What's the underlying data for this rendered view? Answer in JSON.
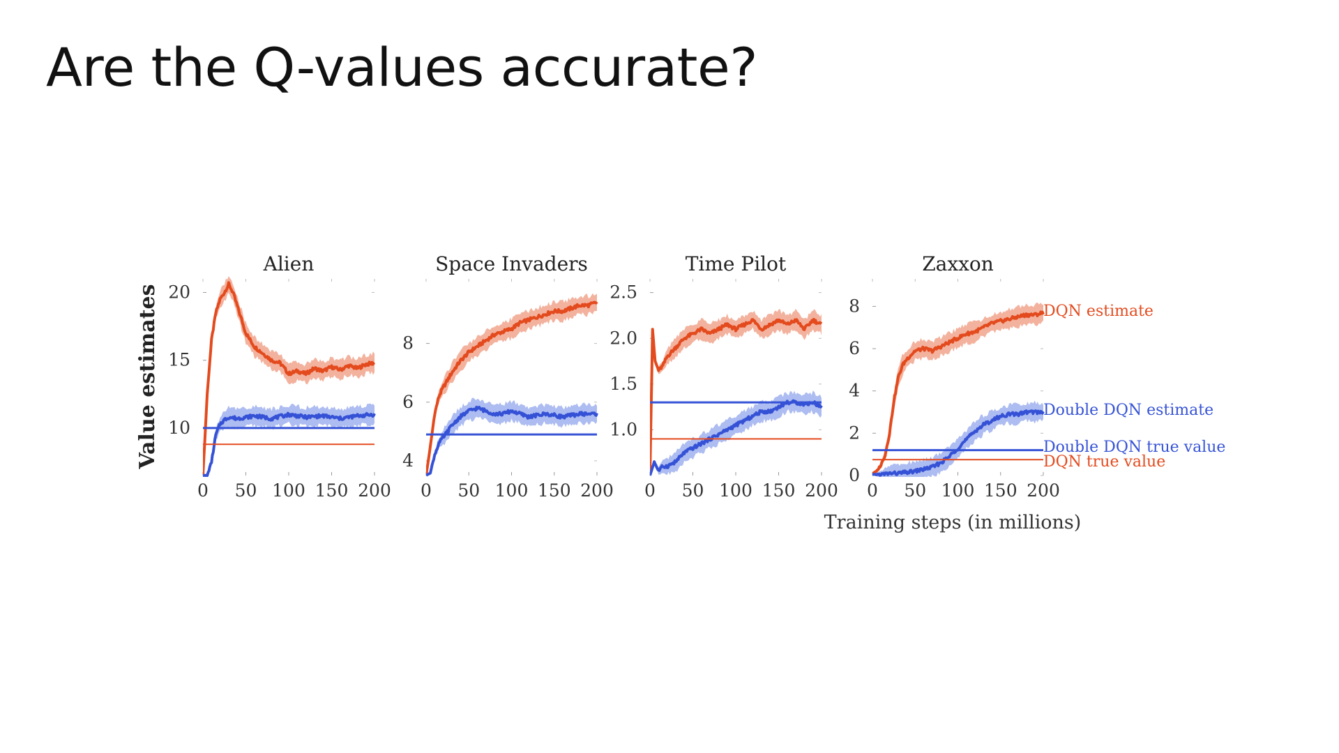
{
  "slide": {
    "title": "Are the Q-values accurate?"
  },
  "colors": {
    "dqn": "#e34a1d",
    "dqn_band": "#f1a48d",
    "double": "#3552d6",
    "double_band": "#9fb0ef",
    "text": "#222222"
  },
  "figure": {
    "ylabel": "Value estimates",
    "xlabel": "Training steps (in millions)",
    "labels": {
      "dqn_estimate": "DQN estimate",
      "double_estimate": "Double DQN estimate",
      "double_true": "Double DQN true value",
      "dqn_true": "DQN true value"
    }
  },
  "chart_data": [
    {
      "type": "line",
      "title": "Alien",
      "xlim": [
        0,
        200
      ],
      "ylim": [
        6.5,
        21
      ],
      "xticks": [
        0,
        50,
        100,
        150,
        200
      ],
      "yticks": [
        10,
        15,
        20
      ],
      "ytick_labels": [
        "10",
        "15",
        "20"
      ],
      "series": [
        {
          "name": "DQN estimate",
          "x": [
            0,
            5,
            10,
            15,
            20,
            25,
            30,
            35,
            40,
            50,
            60,
            70,
            80,
            90,
            100,
            110,
            120,
            130,
            140,
            150,
            160,
            170,
            180,
            190,
            200
          ],
          "values": [
            6.5,
            12.5,
            16.5,
            18.5,
            19.5,
            20.0,
            20.6,
            20.0,
            19.0,
            17.0,
            16.0,
            15.5,
            15.0,
            14.8,
            14.0,
            14.2,
            14.0,
            14.4,
            14.2,
            14.5,
            14.3,
            14.6,
            14.4,
            14.7,
            14.8
          ]
        },
        {
          "name": "Double DQN estimate",
          "x": [
            0,
            5,
            10,
            15,
            20,
            25,
            30,
            40,
            50,
            60,
            80,
            100,
            120,
            140,
            160,
            180,
            200
          ],
          "values": [
            6.5,
            6.5,
            7.5,
            9.5,
            10.3,
            10.6,
            10.8,
            10.7,
            10.8,
            10.9,
            10.7,
            11.0,
            10.8,
            10.9,
            10.7,
            10.9,
            11.0
          ]
        },
        {
          "name": "Double DQN true value",
          "x": [
            0,
            200
          ],
          "values": [
            10.0,
            10.0
          ]
        },
        {
          "name": "DQN true value",
          "x": [
            0,
            200
          ],
          "values": [
            8.8,
            8.8
          ]
        }
      ]
    },
    {
      "type": "line",
      "title": "Space Invaders",
      "xlim": [
        0,
        200
      ],
      "ylim": [
        3.5,
        10.2
      ],
      "xticks": [
        0,
        50,
        100,
        150,
        200
      ],
      "yticks": [
        4,
        6,
        8
      ],
      "ytick_labels": [
        "4",
        "6",
        "8"
      ],
      "series": [
        {
          "name": "DQN estimate",
          "x": [
            0,
            5,
            10,
            15,
            20,
            30,
            40,
            50,
            60,
            70,
            80,
            90,
            100,
            110,
            120,
            130,
            140,
            150,
            160,
            170,
            180,
            190,
            200
          ],
          "values": [
            3.5,
            4.5,
            5.6,
            6.2,
            6.5,
            7.0,
            7.4,
            7.7,
            7.9,
            8.1,
            8.3,
            8.4,
            8.5,
            8.7,
            8.8,
            8.9,
            9.0,
            9.1,
            9.1,
            9.2,
            9.3,
            9.3,
            9.4
          ]
        },
        {
          "name": "Double DQN estimate",
          "x": [
            0,
            5,
            10,
            15,
            20,
            30,
            40,
            50,
            60,
            70,
            80,
            90,
            100,
            120,
            140,
            160,
            180,
            200
          ],
          "values": [
            3.5,
            3.6,
            4.2,
            4.6,
            4.8,
            5.2,
            5.5,
            5.7,
            5.8,
            5.7,
            5.6,
            5.6,
            5.7,
            5.5,
            5.6,
            5.5,
            5.6,
            5.6
          ]
        },
        {
          "name": "Double DQN true value",
          "x": [
            0,
            200
          ],
          "values": [
            4.9,
            4.9
          ]
        }
      ]
    },
    {
      "type": "line",
      "title": "Time Pilot",
      "xlim": [
        0,
        200
      ],
      "ylim": [
        0.5,
        2.65
      ],
      "xticks": [
        0,
        50,
        100,
        150,
        200
      ],
      "yticks": [
        1.0,
        1.5,
        2.0,
        2.5
      ],
      "ytick_labels": [
        "1.0",
        "1.5",
        "2.0",
        "2.5"
      ],
      "series": [
        {
          "name": "DQN estimate",
          "x": [
            0,
            3,
            6,
            10,
            15,
            20,
            30,
            40,
            50,
            60,
            70,
            80,
            90,
            100,
            110,
            120,
            130,
            140,
            150,
            160,
            170,
            180,
            190,
            200
          ],
          "values": [
            0.5,
            2.1,
            1.75,
            1.65,
            1.7,
            1.8,
            1.9,
            2.0,
            2.05,
            2.1,
            2.05,
            2.1,
            2.15,
            2.1,
            2.15,
            2.2,
            2.1,
            2.15,
            2.2,
            2.15,
            2.2,
            2.1,
            2.2,
            2.15
          ]
        },
        {
          "name": "Double DQN estimate",
          "x": [
            0,
            5,
            10,
            15,
            20,
            30,
            40,
            50,
            60,
            70,
            80,
            90,
            100,
            110,
            120,
            130,
            140,
            150,
            160,
            170,
            180,
            190,
            200
          ],
          "values": [
            0.5,
            0.65,
            0.55,
            0.6,
            0.6,
            0.65,
            0.75,
            0.8,
            0.85,
            0.9,
            0.95,
            1.0,
            1.05,
            1.1,
            1.15,
            1.2,
            1.2,
            1.25,
            1.3,
            1.3,
            1.28,
            1.3,
            1.25
          ]
        },
        {
          "name": "Double DQN true value",
          "x": [
            0,
            200
          ],
          "values": [
            1.3,
            1.3
          ]
        },
        {
          "name": "DQN true value",
          "x": [
            0,
            200
          ],
          "values": [
            0.9,
            0.9
          ]
        }
      ]
    },
    {
      "type": "line",
      "title": "Zaxxon",
      "xlim": [
        0,
        200
      ],
      "ylim": [
        0,
        9.3
      ],
      "xticks": [
        0,
        50,
        100,
        150,
        200
      ],
      "yticks": [
        0,
        2,
        4,
        6,
        8
      ],
      "ytick_labels": [
        "0",
        "2",
        "4",
        "6",
        "8"
      ],
      "series": [
        {
          "name": "DQN estimate",
          "x": [
            0,
            5,
            10,
            15,
            20,
            25,
            30,
            35,
            40,
            50,
            60,
            70,
            80,
            90,
            100,
            110,
            120,
            130,
            140,
            150,
            160,
            170,
            180,
            190,
            200
          ],
          "values": [
            0.1,
            0.2,
            0.5,
            1.0,
            2.0,
            3.5,
            4.6,
            5.2,
            5.5,
            5.9,
            6.0,
            5.9,
            6.1,
            6.3,
            6.5,
            6.7,
            6.8,
            7.0,
            7.2,
            7.3,
            7.4,
            7.5,
            7.6,
            7.6,
            7.7
          ]
        },
        {
          "name": "Double DQN estimate",
          "x": [
            0,
            10,
            20,
            30,
            40,
            50,
            60,
            70,
            80,
            90,
            100,
            110,
            120,
            130,
            140,
            150,
            160,
            170,
            180,
            190,
            200
          ],
          "values": [
            0.05,
            0.05,
            0.1,
            0.1,
            0.15,
            0.2,
            0.3,
            0.4,
            0.6,
            0.9,
            1.3,
            1.7,
            2.1,
            2.4,
            2.6,
            2.8,
            2.9,
            2.9,
            3.0,
            3.0,
            3.0
          ]
        },
        {
          "name": "Double DQN true value",
          "x": [
            0,
            200
          ],
          "values": [
            1.2,
            1.2
          ]
        },
        {
          "name": "DQN true value",
          "x": [
            0,
            200
          ],
          "values": [
            0.75,
            0.75
          ]
        }
      ]
    }
  ]
}
